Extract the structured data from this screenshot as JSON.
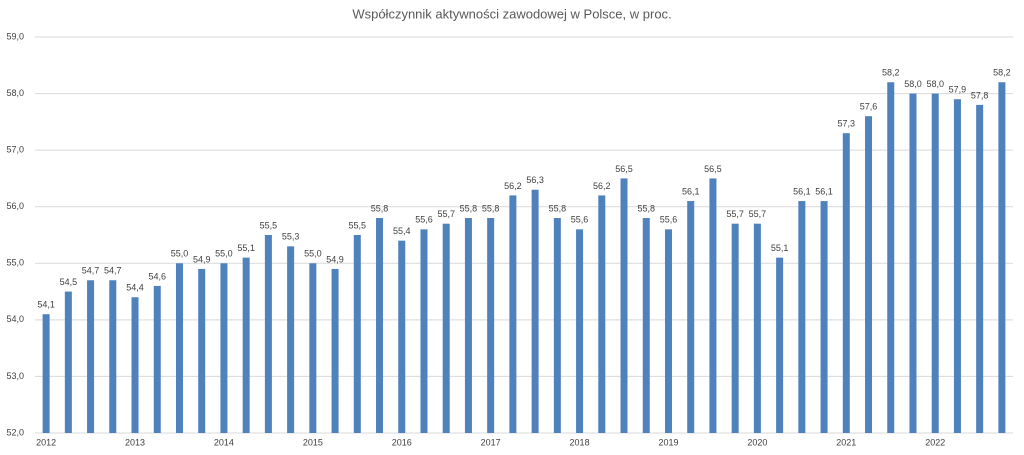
{
  "chart_data": {
    "type": "bar",
    "title": "Współczynnik aktywności zawodowej w Polsce, w proc.",
    "categories": [
      "2012",
      null,
      null,
      null,
      "2013",
      null,
      null,
      null,
      "2014",
      null,
      null,
      null,
      "2015",
      null,
      null,
      null,
      "2016",
      null,
      null,
      null,
      "2017",
      null,
      null,
      null,
      "2018",
      null,
      null,
      null,
      "2019",
      null,
      null,
      null,
      "2020",
      null,
      null,
      null,
      "2021",
      null,
      null,
      null,
      "2022",
      null,
      null,
      null
    ],
    "values": [
      54.1,
      54.5,
      54.7,
      54.7,
      54.4,
      54.6,
      55.0,
      54.9,
      55.0,
      55.1,
      55.5,
      55.3,
      55.0,
      54.9,
      55.5,
      55.8,
      55.4,
      55.6,
      55.7,
      55.8,
      55.8,
      56.2,
      56.3,
      55.8,
      55.6,
      56.2,
      56.5,
      55.8,
      55.6,
      56.1,
      56.5,
      55.7,
      55.7,
      55.1,
      56.1,
      56.1,
      57.3,
      57.6,
      58.2,
      58.0,
      58.0,
      57.9,
      57.8,
      58.2
    ],
    "value_labels": [
      "54,1",
      "54,5",
      "54,7",
      "54,7",
      "54,4",
      "54,6",
      "55,0",
      "54,9",
      "55,0",
      "55,1",
      "55,5",
      "55,3",
      "55,0",
      "54,9",
      "55,5",
      "55,8",
      "55,4",
      "55,6",
      "55,7",
      "55,8",
      "55,8",
      "56,2",
      "56,3",
      "55,8",
      "55,6",
      "56,2",
      "56,5",
      "55,8",
      "55,6",
      "56,1",
      "56,5",
      "55,7",
      "55,7",
      "55,1",
      "56,1",
      "56,1",
      "57,3",
      "57,6",
      "58,2",
      "58,0",
      "58,0",
      "57,9",
      "57,8",
      "58,2"
    ],
    "color": "#4f81bd",
    "ylim": [
      52,
      59
    ],
    "yticks": [
      {
        "value": 52,
        "label": "52,0"
      },
      {
        "value": 53,
        "label": "53,0"
      },
      {
        "value": 54,
        "label": "54,0"
      },
      {
        "value": 55,
        "label": "55,0"
      },
      {
        "value": 56,
        "label": "56,0"
      },
      {
        "value": 57,
        "label": "57,0"
      },
      {
        "value": 58,
        "label": "58,0"
      },
      {
        "value": 59,
        "label": "59,0"
      }
    ],
    "grid": true
  }
}
